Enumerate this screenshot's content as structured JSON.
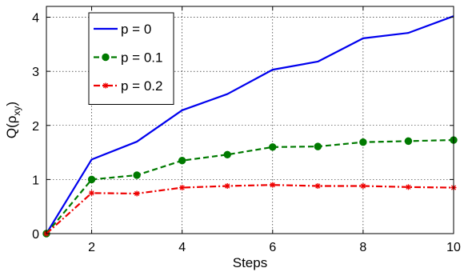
{
  "chart_data": {
    "type": "line",
    "title": "",
    "xlabel": "Steps",
    "ylabel_main": "Q(ρ",
    "ylabel_sub": "xy",
    "ylabel_close": ")",
    "xlim": [
      1,
      10
    ],
    "ylim": [
      0,
      4.2
    ],
    "x_ticks": [
      2,
      4,
      6,
      8,
      10
    ],
    "y_ticks": [
      0,
      1,
      2,
      3,
      4
    ],
    "grid": true,
    "legend_position": "top-left",
    "x": [
      1,
      2,
      3,
      4,
      5,
      6,
      7,
      8,
      9,
      10
    ],
    "series": [
      {
        "name": "p = 0",
        "color": "#0000ee",
        "style": "solid",
        "marker": "none",
        "values": [
          0.0,
          1.37,
          1.7,
          2.28,
          2.58,
          3.03,
          3.18,
          3.61,
          3.71,
          4.02
        ]
      },
      {
        "name": "p = 0.1",
        "color": "#007a00",
        "style": "dashed",
        "marker": "circle",
        "values": [
          0.0,
          1.0,
          1.08,
          1.35,
          1.46,
          1.6,
          1.61,
          1.69,
          1.71,
          1.73
        ]
      },
      {
        "name": "p = 0.2",
        "color": "#ee0000",
        "style": "dashdot",
        "marker": "star",
        "values": [
          0.0,
          0.75,
          0.74,
          0.85,
          0.88,
          0.9,
          0.88,
          0.88,
          0.86,
          0.85
        ]
      }
    ]
  }
}
